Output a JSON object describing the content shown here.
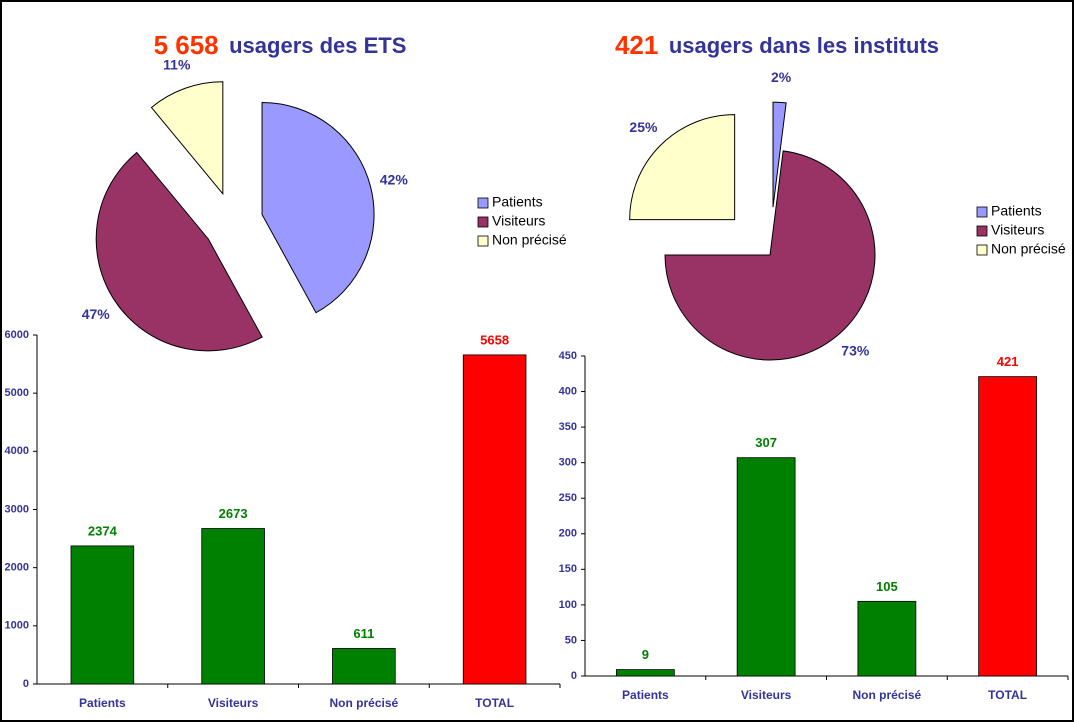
{
  "chart_data": [
    {
      "type": "pie",
      "title_number": "5 658",
      "title": "usagers des ETS",
      "categories": [
        "Patients",
        "Visiteurs",
        "Non précisé"
      ],
      "values": [
        42,
        47,
        11
      ],
      "value_labels": [
        "42%",
        "47%",
        "11%"
      ],
      "colors": [
        "#9999ff",
        "#993366",
        "#ffffcc"
      ],
      "legend": "right"
    },
    {
      "type": "bar",
      "categories": [
        "Patients",
        "Visiteurs",
        "Non précisé",
        "TOTAL"
      ],
      "values": [
        2374,
        2673,
        611,
        5658
      ],
      "colors": [
        "#008000",
        "#008000",
        "#008000",
        "#ff0000"
      ],
      "ylim": [
        0,
        6000
      ],
      "yticks": [
        0,
        1000,
        2000,
        3000,
        4000,
        5000,
        6000
      ]
    },
    {
      "type": "pie",
      "title_number": "421",
      "title": "usagers dans les instituts",
      "categories": [
        "Patients",
        "Visiteurs",
        "Non précisé"
      ],
      "values": [
        2,
        73,
        25
      ],
      "value_labels": [
        "2%",
        "73%",
        "25%"
      ],
      "colors": [
        "#9999ff",
        "#993366",
        "#ffffcc"
      ],
      "legend": "right"
    },
    {
      "type": "bar",
      "categories": [
        "Patients",
        "Visiteurs",
        "Non précisé",
        "TOTAL"
      ],
      "values": [
        9,
        307,
        105,
        421
      ],
      "colors": [
        "#008000",
        "#008000",
        "#008000",
        "#ff0000"
      ],
      "ylim": [
        0,
        450
      ],
      "yticks": [
        0,
        50,
        100,
        150,
        200,
        250,
        300,
        350,
        400,
        450
      ]
    }
  ]
}
